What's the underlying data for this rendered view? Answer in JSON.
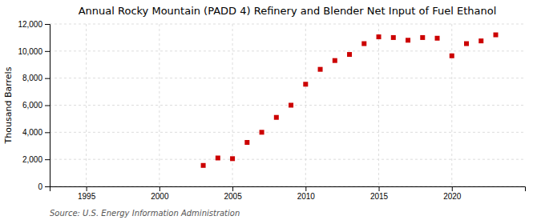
{
  "chart_data": {
    "type": "scatter",
    "title": "Annual Rocky Mountain (PADD 4) Refinery and Blender Net Input of Fuel Ethanol",
    "y_label": "Thousand Barrels",
    "source": "Source: U.S. Energy Information Administration",
    "x": [
      2003,
      2004,
      2005,
      2006,
      2007,
      2008,
      2009,
      2010,
      2011,
      2012,
      2013,
      2014,
      2015,
      2016,
      2017,
      2018,
      2019,
      2020,
      2021,
      2022,
      2023
    ],
    "values": [
      1550,
      2100,
      2050,
      3250,
      4000,
      5100,
      6000,
      7550,
      8650,
      9300,
      9750,
      10550,
      11050,
      11000,
      10800,
      11000,
      10950,
      9650,
      10550,
      10750,
      11200
    ],
    "color": "#cc0000",
    "marker": "square",
    "xlim": [
      1992.5,
      2025
    ],
    "xticks": [
      1995,
      2000,
      2005,
      2010,
      2015,
      2020
    ],
    "ylim": [
      0,
      12000
    ],
    "yticks": [
      0,
      {
        "value": 2000,
        "label": "2,000"
      },
      {
        "value": 4000,
        "label": "4,000"
      },
      {
        "value": 6000,
        "label": "6,000"
      },
      {
        "value": 8000,
        "label": "8,000"
      },
      {
        "value": 10000,
        "label": "10,000"
      },
      {
        "value": 12000,
        "label": "12,000"
      }
    ],
    "grid": true
  }
}
